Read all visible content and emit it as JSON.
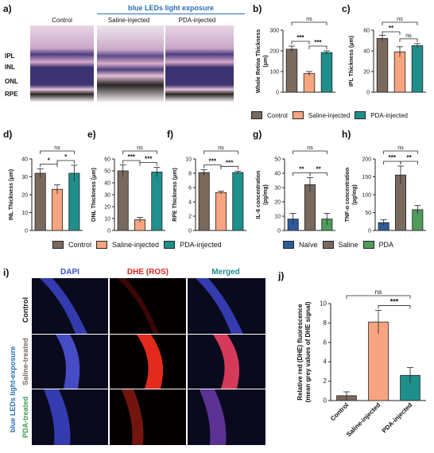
{
  "panel_a": {
    "label": "a)",
    "banner": "blue LEDs light exposure",
    "columns": [
      "Control",
      "Saline-injected",
      "PDA-injected"
    ],
    "layers": [
      "IPL",
      "INL",
      "ONL",
      "RPE"
    ]
  },
  "panel_i": {
    "label": "i)",
    "columns": [
      "DAPI",
      "DHE (ROS)",
      "Merged"
    ],
    "rows": [
      "Control",
      "Saline-treated",
      "PDA-treated"
    ],
    "side": "blue LEDs light-exposure"
  },
  "legend_main": [
    "Control",
    "Saline-injected",
    "PDA-injected"
  ],
  "legend_gh": [
    "Naïve",
    "Saline",
    "PDA"
  ],
  "colors": {
    "control": "#7a6a5e",
    "saline": "#f7a580",
    "pda": "#1f8f8d",
    "naive": "#2e5a9c",
    "saline_gh": "#7a6a5e",
    "pda_gh": "#4f9b5c",
    "banner": "#2a6fb5"
  },
  "chart_data": [
    {
      "id": "b",
      "label": "b)",
      "type": "bar",
      "ylabel": "Whole Retina Thickness (μm)",
      "ylim": [
        0,
        300
      ],
      "yticks": [
        0,
        100,
        200,
        300
      ],
      "categories": [
        "Control",
        "Saline-injected",
        "PDA-injected"
      ],
      "values": [
        208,
        90,
        192
      ],
      "errors": [
        15,
        10,
        8
      ],
      "sig": [
        {
          "a": 0,
          "b": 1,
          "t": "***",
          "lvl": 1
        },
        {
          "a": 1,
          "b": 2,
          "t": "***",
          "lvl": 1
        },
        {
          "a": 0,
          "b": 2,
          "t": "ns",
          "lvl": 2
        }
      ]
    },
    {
      "id": "c",
      "label": "c)",
      "type": "bar",
      "ylabel": "IPL Thickness (μm)",
      "ylim": [
        0,
        60
      ],
      "yticks": [
        0,
        20,
        40,
        60
      ],
      "categories": [
        "Control",
        "Saline-injected",
        "PDA-injected"
      ],
      "values": [
        52,
        39,
        45
      ],
      "errors": [
        3,
        5,
        2
      ],
      "sig": [
        {
          "a": 0,
          "b": 1,
          "t": "**",
          "lvl": 1
        },
        {
          "a": 1,
          "b": 2,
          "t": "ns",
          "lvl": 1
        },
        {
          "a": 0,
          "b": 2,
          "t": "ns",
          "lvl": 2
        }
      ]
    },
    {
      "id": "d",
      "label": "d)",
      "type": "bar",
      "ylabel": "INL Thickness (μm)",
      "ylim": [
        0,
        40
      ],
      "yticks": [
        0,
        10,
        20,
        30,
        40
      ],
      "categories": [
        "Control",
        "Saline-injected",
        "PDA-injected"
      ],
      "values": [
        32,
        23,
        32
      ],
      "errors": [
        2.5,
        2.5,
        4.5
      ],
      "sig": [
        {
          "a": 0,
          "b": 1,
          "t": "*",
          "lvl": 1
        },
        {
          "a": 1,
          "b": 2,
          "t": "*",
          "lvl": 1
        },
        {
          "a": 0,
          "b": 2,
          "t": "ns",
          "lvl": 2
        }
      ]
    },
    {
      "id": "e",
      "label": "e)",
      "type": "bar",
      "ylabel": "ONL Thickness (μm)",
      "ylim": [
        0,
        60
      ],
      "yticks": [
        0,
        10,
        20,
        30,
        40,
        50,
        60
      ],
      "categories": [
        "Control",
        "Saline-injected",
        "PDA-injected"
      ],
      "values": [
        50,
        9,
        49
      ],
      "errors": [
        5,
        2,
        4
      ],
      "sig": [
        {
          "a": 0,
          "b": 1,
          "t": "***",
          "lvl": 1
        },
        {
          "a": 1,
          "b": 2,
          "t": "***",
          "lvl": 1
        },
        {
          "a": 0,
          "b": 2,
          "t": "ns",
          "lvl": 2
        }
      ]
    },
    {
      "id": "f",
      "label": "f)",
      "type": "bar",
      "ylabel": "RPE Thickness (μm)",
      "ylim": [
        0,
        10
      ],
      "yticks": [
        0,
        2,
        4,
        6,
        8,
        10
      ],
      "categories": [
        "Control",
        "Saline-injected",
        "PDA-injected"
      ],
      "values": [
        8.1,
        5.3,
        8.1
      ],
      "errors": [
        0.4,
        0.2,
        0.2
      ],
      "sig": [
        {
          "a": 0,
          "b": 1,
          "t": "***",
          "lvl": 1
        },
        {
          "a": 1,
          "b": 2,
          "t": "***",
          "lvl": 1
        },
        {
          "a": 0,
          "b": 2,
          "t": "ns",
          "lvl": 2
        }
      ]
    },
    {
      "id": "g",
      "label": "g)",
      "type": "bar",
      "ylabel": "IL-6 concentration (pg/mg)",
      "ylim": [
        0,
        50
      ],
      "yticks": [
        0,
        10,
        20,
        30,
        40,
        50
      ],
      "categories": [
        "Naïve",
        "Saline",
        "PDA"
      ],
      "values": [
        8,
        32,
        8
      ],
      "errors": [
        4,
        5,
        4
      ],
      "sig": [
        {
          "a": 0,
          "b": 1,
          "t": "**",
          "lvl": 1
        },
        {
          "a": 1,
          "b": 2,
          "t": "**",
          "lvl": 1
        },
        {
          "a": 0,
          "b": 2,
          "t": "ns",
          "lvl": 2
        }
      ]
    },
    {
      "id": "h",
      "label": "h)",
      "type": "bar",
      "ylabel": "TNF-α concentration (pg/mg)",
      "ylim": [
        0,
        200
      ],
      "yticks": [
        0,
        50,
        100,
        150,
        200
      ],
      "categories": [
        "Naïve",
        "Saline",
        "PDA"
      ],
      "values": [
        22,
        155,
        58
      ],
      "errors": [
        8,
        25,
        12
      ],
      "sig": [
        {
          "a": 0,
          "b": 1,
          "t": "***",
          "lvl": 1
        },
        {
          "a": 1,
          "b": 2,
          "t": "**",
          "lvl": 1
        },
        {
          "a": 0,
          "b": 2,
          "t": "ns",
          "lvl": 2
        }
      ]
    },
    {
      "id": "j",
      "label": "j)",
      "type": "bar",
      "ylabel": "Relative red (DHE) fluorescence (mean grey values of DHE signal)",
      "ylim": [
        0,
        10
      ],
      "yticks": [
        0,
        2,
        4,
        6,
        8,
        10
      ],
      "categories": [
        "Control",
        "Saline-injected",
        "PDA-injected"
      ],
      "values": [
        0.5,
        8.1,
        2.6
      ],
      "errors": [
        0.4,
        1.2,
        0.8
      ],
      "sig": [
        {
          "a": 1,
          "b": 2,
          "t": "***",
          "lvl": 1
        },
        {
          "a": 0,
          "b": 2,
          "t": "ns",
          "lvl": 2
        }
      ]
    }
  ]
}
